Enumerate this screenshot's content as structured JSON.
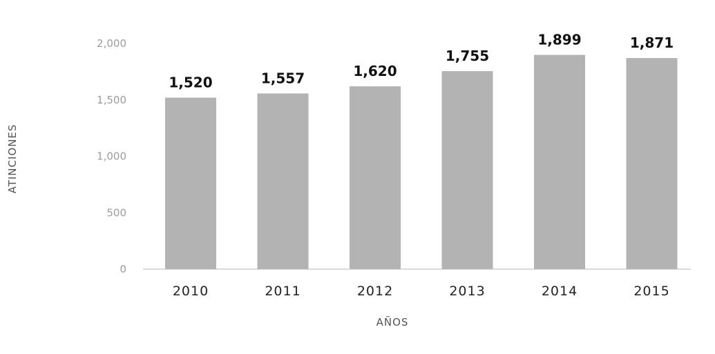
{
  "chart_data": {
    "type": "bar",
    "categories": [
      "2010",
      "2011",
      "2012",
      "2013",
      "2014",
      "2015"
    ],
    "values": [
      1520,
      1557,
      1620,
      1755,
      1899,
      1871
    ],
    "value_labels": [
      "1,520",
      "1,557",
      "1,620",
      "1,755",
      "1,899",
      "1,871"
    ],
    "yticks": [
      0,
      500,
      1000,
      1500,
      2000
    ],
    "ytick_labels": [
      "0",
      "500",
      "1,000",
      "1,500",
      "2,000"
    ],
    "ylim": [
      0,
      2000
    ],
    "xlabel": "AÑOS",
    "ylabel": "ATINCIONES",
    "title": "",
    "grid": false,
    "bar_color": "#b3b3b3",
    "axis_color": "#cfcfcf"
  }
}
